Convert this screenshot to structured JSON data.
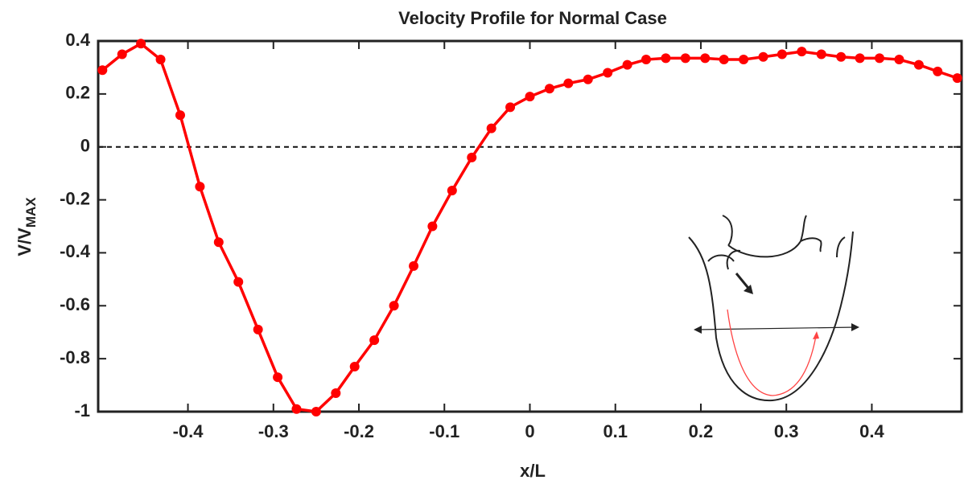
{
  "chart_data": {
    "type": "line",
    "title": "Velocity Profile for Normal Case",
    "xlabel": "x/L",
    "ylabel": {
      "text": "V/V",
      "subscript": "MAX"
    },
    "x": [
      -0.5,
      -0.477,
      -0.455,
      -0.432,
      -0.409,
      -0.386,
      -0.364,
      -0.341,
      -0.318,
      -0.295,
      -0.273,
      -0.25,
      -0.227,
      -0.205,
      -0.182,
      -0.159,
      -0.136,
      -0.114,
      -0.091,
      -0.068,
      -0.045,
      -0.023,
      0,
      0.023,
      0.045,
      0.068,
      0.091,
      0.114,
      0.136,
      0.159,
      0.182,
      0.205,
      0.227,
      0.25,
      0.273,
      0.295,
      0.318,
      0.341,
      0.364,
      0.386,
      0.409,
      0.432,
      0.455,
      0.477,
      0.5
    ],
    "series": [
      {
        "color": "#ff0000",
        "values": [
          0.29,
          0.35,
          0.39,
          0.33,
          0.12,
          -0.15,
          -0.36,
          -0.51,
          -0.69,
          -0.87,
          -0.99,
          -1.0,
          -0.93,
          -0.83,
          -0.73,
          -0.6,
          -0.45,
          -0.3,
          -0.165,
          -0.04,
          0.07,
          0.15,
          0.19,
          0.22,
          0.24,
          0.255,
          0.28,
          0.31,
          0.33,
          0.335,
          0.335,
          0.335,
          0.33,
          0.33,
          0.34,
          0.35,
          0.36,
          0.35,
          0.34,
          0.335,
          0.335,
          0.33,
          0.31,
          0.285,
          0.26
        ]
      }
    ],
    "xlim": [
      -0.505,
      0.505
    ],
    "ylim": [
      -1,
      0.4
    ],
    "xticks": [
      -0.4,
      -0.3,
      -0.2,
      -0.1,
      0,
      0.1,
      0.2,
      0.3,
      0.4
    ],
    "yticks": [
      -1,
      -0.8,
      -0.6,
      -0.4,
      -0.2,
      0,
      0.2,
      0.4
    ],
    "reference_line": 0
  }
}
